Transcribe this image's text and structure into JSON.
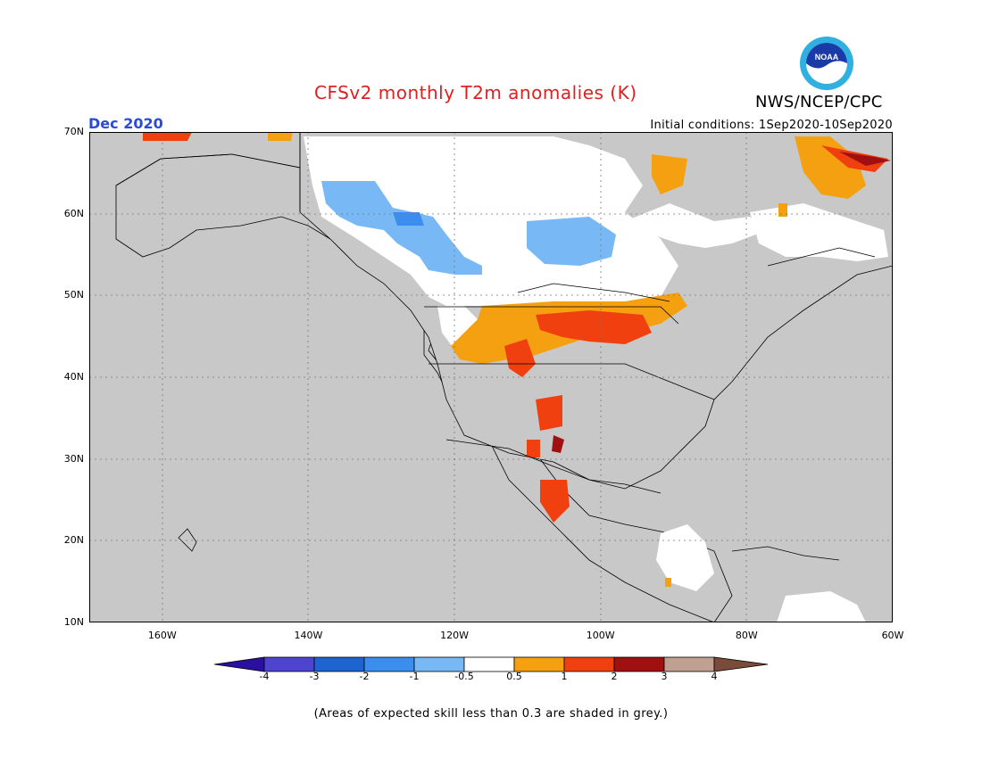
{
  "header": {
    "title": "CFSv2 monthly T2m anomalies (K)",
    "agency": "NWS/NCEP/CPC",
    "valid_month": "Dec 2020",
    "initial_conditions": "Initial conditions: 1Sep2020-10Sep2020",
    "logo_text": "NOAA"
  },
  "map": {
    "extent": {
      "lon_min": -170,
      "lon_max": -60,
      "lat_min": 10,
      "lat_max": 70
    },
    "ocean_color": "#c8c8c8",
    "lat_labels": [
      "70N",
      "60N",
      "50N",
      "40N",
      "30N",
      "20N",
      "10N"
    ],
    "lat_values": [
      70,
      60,
      50,
      40,
      30,
      20,
      10
    ],
    "lon_labels": [
      "160W",
      "140W",
      "120W",
      "100W",
      "80W",
      "60W"
    ],
    "lon_values": [
      -160,
      -140,
      -120,
      -100,
      -80,
      -60
    ],
    "grid": true
  },
  "colorbar": {
    "labels": [
      "-4",
      "-3",
      "-2",
      "-1",
      "-0.5",
      "0.5",
      "1",
      "2",
      "3",
      "4"
    ],
    "colors": [
      "#2a10a0",
      "#4e44d0",
      "#1e64d0",
      "#3c8eee",
      "#78b8f4",
      "#ffffff",
      "#f5a010",
      "#f04010",
      "#a01010",
      "#c0a090",
      "#7a4a3a"
    ]
  },
  "footnote": "(Areas of expected skill less than 0.3 are shaded in grey.)"
}
